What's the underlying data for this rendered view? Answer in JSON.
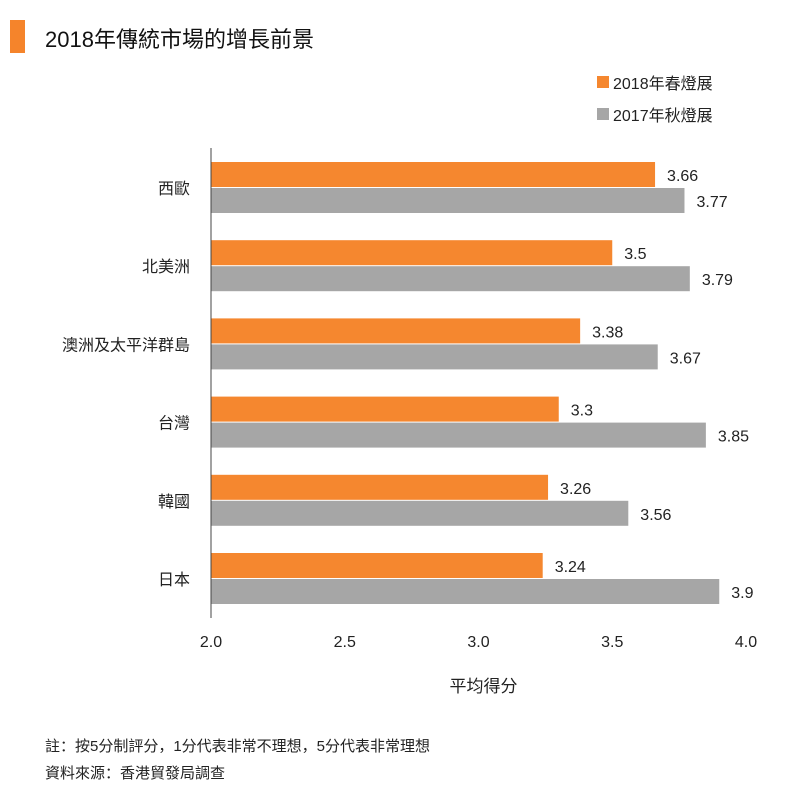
{
  "title": "2018年傳統市場的增長前景",
  "colors": {
    "accent": "#f5842b",
    "series1": "#f5872f",
    "series2": "#a6a6a6"
  },
  "chart_data": {
    "type": "bar",
    "orientation": "horizontal",
    "categories": [
      "西歐",
      "北美洲",
      "澳洲及太平洋群島",
      "台灣",
      "韓國",
      "日本"
    ],
    "series": [
      {
        "name": "2018年春燈展",
        "values": [
          3.66,
          3.5,
          3.38,
          3.3,
          3.26,
          3.24
        ]
      },
      {
        "name": "2017年秋燈展",
        "values": [
          3.77,
          3.79,
          3.67,
          3.85,
          3.56,
          3.9
        ]
      }
    ],
    "data_labels": [
      [
        "3.66",
        "3.5",
        "3.38",
        "3.3",
        "3.26",
        "3.24"
      ],
      [
        "3.77",
        "3.79",
        "3.67",
        "3.85",
        "3.56",
        "3.9"
      ]
    ],
    "xlabel": "平均得分",
    "xlim": [
      2.0,
      4.0
    ],
    "xticks": [
      "2.0",
      "2.5",
      "3.0",
      "3.5",
      "4.0"
    ],
    "grid": false,
    "legend": "top-right"
  },
  "notes": [
    "註：按5分制評分，1分代表非常不理想，5分代表非常理想",
    "資料來源：香港貿發局調查"
  ]
}
